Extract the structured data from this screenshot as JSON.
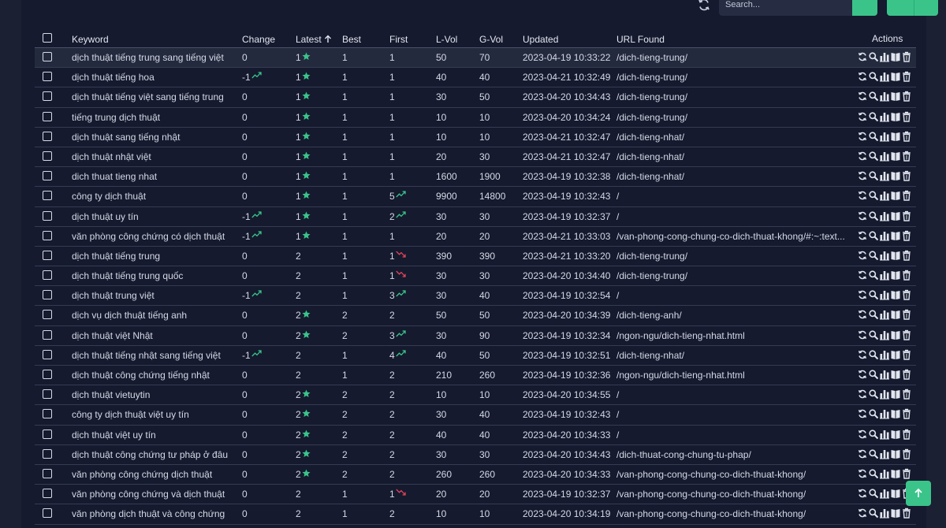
{
  "toolbar": {
    "search_placeholder": "Search...",
    "icons": [
      "refresh-icon",
      "search-icon",
      "filter-icon",
      "chevron-down-icon"
    ]
  },
  "columns": {
    "keyword": "Keyword",
    "change": "Change",
    "latest": "Latest",
    "best": "Best",
    "first": "First",
    "lvol": "L-Vol",
    "gvol": "G-Vol",
    "updated": "Updated",
    "url": "URL Found",
    "actions": "Actions"
  },
  "colors": {
    "accent": "#3ac48a",
    "star": "#3ac48a",
    "trend_up": "#3ac48a",
    "trend_down": "#e0445a"
  },
  "rows": [
    {
      "keyword": "dịch thuật tiếng trung sang tiếng việt",
      "change": "0",
      "change_trend": "",
      "latest": "1",
      "latest_star": true,
      "best": "1",
      "first": "1",
      "first_trend": "",
      "lvol": "50",
      "gvol": "70",
      "updated": "2023-04-19 10:33:22",
      "url": "/dich-tieng-trung/"
    },
    {
      "keyword": "dịch thuật tiếng hoa",
      "change": "-1",
      "change_trend": "up",
      "latest": "1",
      "latest_star": true,
      "best": "1",
      "first": "1",
      "first_trend": "",
      "lvol": "40",
      "gvol": "40",
      "updated": "2023-04-21 10:32:49",
      "url": "/dich-tieng-trung/"
    },
    {
      "keyword": "dịch thuật tiếng việt sang tiếng trung",
      "change": "0",
      "change_trend": "",
      "latest": "1",
      "latest_star": true,
      "best": "1",
      "first": "1",
      "first_trend": "",
      "lvol": "30",
      "gvol": "50",
      "updated": "2023-04-20 10:34:43",
      "url": "/dich-tieng-trung/"
    },
    {
      "keyword": "tiếng trung dịch thuật",
      "change": "0",
      "change_trend": "",
      "latest": "1",
      "latest_star": true,
      "best": "1",
      "first": "1",
      "first_trend": "",
      "lvol": "10",
      "gvol": "10",
      "updated": "2023-04-20 10:34:24",
      "url": "/dich-tieng-trung/"
    },
    {
      "keyword": "dịch thuật sang tiếng nhật",
      "change": "0",
      "change_trend": "",
      "latest": "1",
      "latest_star": true,
      "best": "1",
      "first": "1",
      "first_trend": "",
      "lvol": "10",
      "gvol": "10",
      "updated": "2023-04-21 10:32:47",
      "url": "/dich-tieng-nhat/"
    },
    {
      "keyword": "dịch thuật nhật việt",
      "change": "0",
      "change_trend": "",
      "latest": "1",
      "latest_star": true,
      "best": "1",
      "first": "1",
      "first_trend": "",
      "lvol": "20",
      "gvol": "30",
      "updated": "2023-04-21 10:32:47",
      "url": "/dich-tieng-nhat/"
    },
    {
      "keyword": "dich thuat tieng nhat",
      "change": "0",
      "change_trend": "",
      "latest": "1",
      "latest_star": true,
      "best": "1",
      "first": "1",
      "first_trend": "",
      "lvol": "1600",
      "gvol": "1900",
      "updated": "2023-04-19 10:32:38",
      "url": "/dich-tieng-nhat/"
    },
    {
      "keyword": "công ty dịch thuật",
      "change": "0",
      "change_trend": "",
      "latest": "1",
      "latest_star": true,
      "best": "1",
      "first": "5",
      "first_trend": "up",
      "lvol": "9900",
      "gvol": "14800",
      "updated": "2023-04-19 10:32:43",
      "url": "/"
    },
    {
      "keyword": "dịch thuật uy tín",
      "change": "-1",
      "change_trend": "up",
      "latest": "1",
      "latest_star": true,
      "best": "1",
      "first": "2",
      "first_trend": "up",
      "lvol": "30",
      "gvol": "30",
      "updated": "2023-04-19 10:32:37",
      "url": "/"
    },
    {
      "keyword": "văn phòng công chứng có dịch thuật",
      "change": "-1",
      "change_trend": "up",
      "latest": "1",
      "latest_star": true,
      "best": "1",
      "first": "1",
      "first_trend": "",
      "lvol": "20",
      "gvol": "20",
      "updated": "2023-04-21 10:33:03",
      "url": "/van-phong-cong-chung-co-dich-thuat-khong/#:~:text..."
    },
    {
      "keyword": "dịch thuật tiếng trung",
      "change": "0",
      "change_trend": "",
      "latest": "2",
      "latest_star": false,
      "best": "1",
      "first": "1",
      "first_trend": "down",
      "lvol": "390",
      "gvol": "390",
      "updated": "2023-04-21 10:33:20",
      "url": "/dich-tieng-trung/"
    },
    {
      "keyword": "dịch thuật tiếng trung quốc",
      "change": "0",
      "change_trend": "",
      "latest": "2",
      "latest_star": false,
      "best": "1",
      "first": "1",
      "first_trend": "down",
      "lvol": "30",
      "gvol": "30",
      "updated": "2023-04-20 10:34:40",
      "url": "/dich-tieng-trung/"
    },
    {
      "keyword": "dịch thuật trung việt",
      "change": "-1",
      "change_trend": "up",
      "latest": "2",
      "latest_star": false,
      "best": "1",
      "first": "3",
      "first_trend": "up",
      "lvol": "30",
      "gvol": "40",
      "updated": "2023-04-19 10:32:54",
      "url": "/"
    },
    {
      "keyword": "dịch vụ dịch thuật tiếng anh",
      "change": "0",
      "change_trend": "",
      "latest": "2",
      "latest_star": true,
      "best": "2",
      "first": "2",
      "first_trend": "",
      "lvol": "50",
      "gvol": "50",
      "updated": "2023-04-20 10:34:39",
      "url": "/dich-tieng-anh/"
    },
    {
      "keyword": "dịch thuật việt Nhật",
      "change": "0",
      "change_trend": "",
      "latest": "2",
      "latest_star": true,
      "best": "2",
      "first": "3",
      "first_trend": "up",
      "lvol": "30",
      "gvol": "90",
      "updated": "2023-04-19 10:32:34",
      "url": "/ngon-ngu/dich-tieng-nhat.html"
    },
    {
      "keyword": "dịch thuật tiếng nhật sang tiếng việt",
      "change": "-1",
      "change_trend": "up",
      "latest": "2",
      "latest_star": false,
      "best": "1",
      "first": "4",
      "first_trend": "up",
      "lvol": "40",
      "gvol": "50",
      "updated": "2023-04-19 10:32:51",
      "url": "/dich-tieng-nhat/"
    },
    {
      "keyword": "dịch thuật công chứng tiếng nhật",
      "change": "0",
      "change_trend": "",
      "latest": "2",
      "latest_star": false,
      "best": "1",
      "first": "2",
      "first_trend": "",
      "lvol": "210",
      "gvol": "260",
      "updated": "2023-04-19 10:32:36",
      "url": "/ngon-ngu/dich-tieng-nhat.html"
    },
    {
      "keyword": "dịch thuật vietuytin",
      "change": "0",
      "change_trend": "",
      "latest": "2",
      "latest_star": true,
      "best": "2",
      "first": "2",
      "first_trend": "",
      "lvol": "10",
      "gvol": "10",
      "updated": "2023-04-20 10:34:55",
      "url": "/"
    },
    {
      "keyword": "công ty dịch thuật việt uy tín",
      "change": "0",
      "change_trend": "",
      "latest": "2",
      "latest_star": true,
      "best": "2",
      "first": "2",
      "first_trend": "",
      "lvol": "30",
      "gvol": "40",
      "updated": "2023-04-19 10:32:43",
      "url": "/"
    },
    {
      "keyword": "dịch thuật việt uy tín",
      "change": "0",
      "change_trend": "",
      "latest": "2",
      "latest_star": true,
      "best": "2",
      "first": "2",
      "first_trend": "",
      "lvol": "40",
      "gvol": "40",
      "updated": "2023-04-20 10:34:33",
      "url": "/"
    },
    {
      "keyword": "dịch thuật công chứng tư pháp ở đâu",
      "change": "0",
      "change_trend": "",
      "latest": "2",
      "latest_star": true,
      "best": "2",
      "first": "2",
      "first_trend": "",
      "lvol": "30",
      "gvol": "30",
      "updated": "2023-04-20 10:34:43",
      "url": "/dich-thuat-cong-chung-tu-phap/"
    },
    {
      "keyword": "văn phòng công chứng dịch thuật",
      "change": "0",
      "change_trend": "",
      "latest": "2",
      "latest_star": true,
      "best": "2",
      "first": "2",
      "first_trend": "",
      "lvol": "260",
      "gvol": "260",
      "updated": "2023-04-20 10:34:33",
      "url": "/van-phong-cong-chung-co-dich-thuat-khong/"
    },
    {
      "keyword": "văn phòng công chứng và dịch thuật",
      "change": "0",
      "change_trend": "",
      "latest": "2",
      "latest_star": false,
      "best": "1",
      "first": "1",
      "first_trend": "down",
      "lvol": "20",
      "gvol": "20",
      "updated": "2023-04-19 10:32:37",
      "url": "/van-phong-cong-chung-co-dich-thuat-khong/"
    },
    {
      "keyword": "văn phòng dịch thuật và công chứng",
      "change": "0",
      "change_trend": "",
      "latest": "2",
      "latest_star": false,
      "best": "1",
      "first": "2",
      "first_trend": "",
      "lvol": "10",
      "gvol": "10",
      "updated": "2023-04-20 10:34:19",
      "url": "/van-phong-cong-chung-co-dich-thuat-khong/"
    }
  ]
}
